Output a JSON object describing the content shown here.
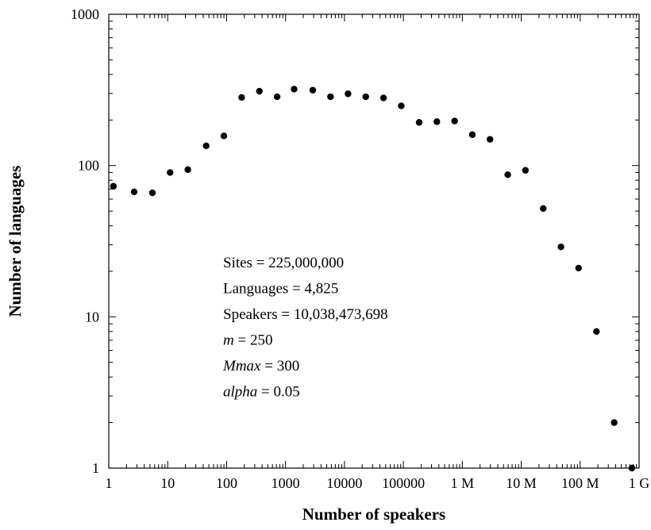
{
  "chart_data": {
    "type": "scatter",
    "x_scale": "log",
    "y_scale": "log",
    "xlabel": "Number of speakers",
    "ylabel": "Number of languages",
    "xlim": [
      1,
      1000000000
    ],
    "ylim": [
      1,
      1000
    ],
    "x_ticks": [
      {
        "value": 1,
        "label": "1"
      },
      {
        "value": 10,
        "label": "10"
      },
      {
        "value": 100,
        "label": "100"
      },
      {
        "value": 1000,
        "label": "1000"
      },
      {
        "value": 10000,
        "label": "10000"
      },
      {
        "value": 100000,
        "label": "100000"
      },
      {
        "value": 1000000,
        "label": "1 M"
      },
      {
        "value": 10000000,
        "label": "10 M"
      },
      {
        "value": 100000000,
        "label": "100 M"
      },
      {
        "value": 1000000000,
        "label": "1 G"
      }
    ],
    "y_ticks": [
      {
        "value": 1,
        "label": "1"
      },
      {
        "value": 10,
        "label": "10"
      },
      {
        "value": 100,
        "label": "100"
      },
      {
        "value": 1000,
        "label": "1000"
      }
    ],
    "grid": false,
    "x": [
      1.2,
      2.7,
      5.5,
      11,
      22,
      45,
      90,
      180,
      360,
      720,
      1400,
      2900,
      5800,
      11500,
      23000,
      46000,
      92000,
      185000,
      370000,
      740000,
      1480000,
      2950000,
      5900000,
      11800000,
      23600000,
      47200000,
      94000000,
      189000000,
      378000000,
      755000000
    ],
    "y": [
      73,
      67,
      66,
      90,
      94,
      135,
      157,
      282,
      310,
      285,
      320,
      315,
      285,
      298,
      285,
      280,
      248,
      193,
      195,
      197,
      160,
      149,
      87,
      93,
      52,
      29,
      21,
      8,
      2,
      1
    ],
    "annotations": [
      {
        "label": "Sites",
        "sep": " = ",
        "value": "225,000,000",
        "italic": false
      },
      {
        "label": "Languages",
        "sep": " = ",
        "value": "4,825",
        "italic": false
      },
      {
        "label": "Speakers",
        "sep": " =  ",
        "value": "10,038,473,698",
        "italic": false
      },
      {
        "label": "m",
        "sep": " = ",
        "value": "250",
        "italic": true
      },
      {
        "label": "Mmax",
        "sep": " = ",
        "value": "300",
        "italic": true
      },
      {
        "label": "alpha",
        "sep": " = ",
        "value": "0.05",
        "italic": true
      }
    ]
  }
}
